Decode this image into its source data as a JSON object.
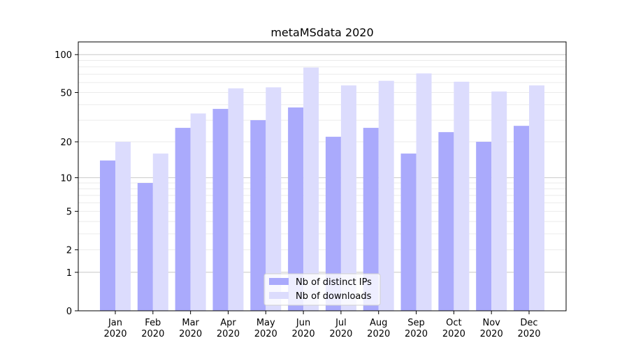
{
  "chart_data": {
    "type": "bar",
    "title": "metaMSdata 2020",
    "xlabel": "",
    "ylabel": "",
    "yscale": "symlog (log10(1+y))",
    "ylim": [
      0,
      130
    ],
    "yticks": [
      0,
      1,
      2,
      5,
      10,
      20,
      50,
      100
    ],
    "grid": true,
    "legend_position": "bottom-center",
    "categories": [
      "Jan\n2020",
      "Feb\n2020",
      "Mar\n2020",
      "Apr\n2020",
      "May\n2020",
      "Jun\n2020",
      "Jul\n2020",
      "Aug\n2020",
      "Sep\n2020",
      "Oct\n2020",
      "Nov\n2020",
      "Dec\n2020"
    ],
    "series": [
      {
        "name": "Nb of distinct IPs",
        "color": "#aaaafc",
        "values": [
          14,
          9,
          26,
          37,
          30,
          38,
          22,
          26,
          16,
          24,
          20,
          27
        ]
      },
      {
        "name": "Nb of downloads",
        "color": "#dcdcfd",
        "values": [
          20,
          16,
          34,
          54,
          55,
          79,
          57,
          62,
          71,
          61,
          51,
          57
        ]
      }
    ]
  }
}
